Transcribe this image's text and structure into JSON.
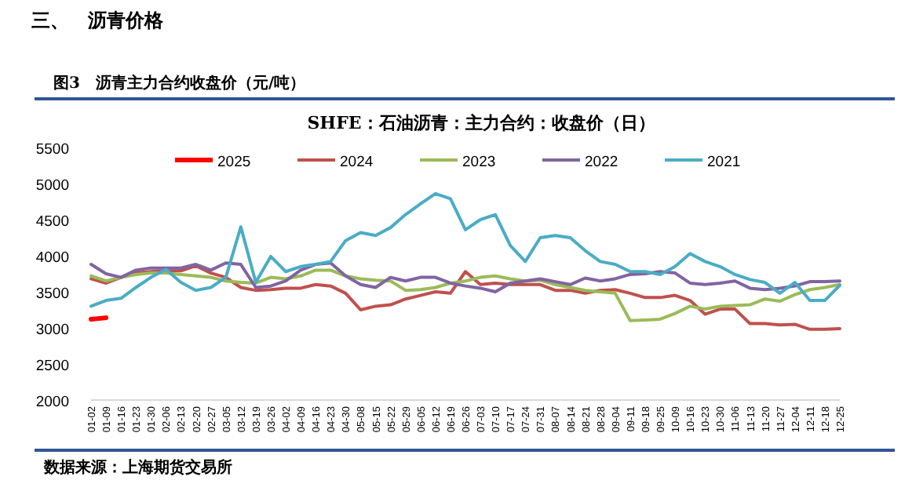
{
  "chart_data": {
    "type": "line",
    "title": "SHFE：石油沥青：主力合约：收盘价（日）",
    "annotations": [
      "三、　沥青价格",
      "图3　沥青主力合约收盘价（元/吨）",
      "数据来源：上海期货交易所"
    ],
    "categories": [
      "01-02",
      "01-09",
      "01-16",
      "01-23",
      "01-30",
      "02-06",
      "02-13",
      "02-20",
      "02-27",
      "03-05",
      "03-12",
      "03-19",
      "03-26",
      "04-02",
      "04-09",
      "04-16",
      "04-23",
      "04-30",
      "05-08",
      "05-15",
      "05-22",
      "05-29",
      "06-05",
      "06-12",
      "06-19",
      "06-26",
      "07-03",
      "07-10",
      "07-17",
      "07-24",
      "07-31",
      "08-07",
      "08-14",
      "08-21",
      "08-28",
      "09-04",
      "09-11",
      "09-18",
      "09-25",
      "10-09",
      "10-16",
      "10-23",
      "10-30",
      "11-06",
      "11-13",
      "11-20",
      "11-27",
      "12-04",
      "12-11",
      "12-18",
      "12-25"
    ],
    "series": [
      {
        "name": "2025",
        "color": "#ff0000",
        "values": [
          3120,
          3140,
          null,
          null,
          null,
          null,
          null,
          null,
          null,
          null,
          null,
          null,
          null,
          null,
          null,
          null,
          null,
          null,
          null,
          null,
          null,
          null,
          null,
          null,
          null,
          null,
          null,
          null,
          null,
          null,
          null,
          null,
          null,
          null,
          null,
          null,
          null,
          null,
          null,
          null,
          null,
          null,
          null,
          null,
          null,
          null,
          null,
          null,
          null,
          null,
          null
        ]
      },
      {
        "name": "2024",
        "color": "#c0504d",
        "values": [
          3680,
          3620,
          3700,
          3760,
          3780,
          3790,
          3790,
          3860,
          3760,
          3700,
          3560,
          3520,
          3530,
          3550,
          3550,
          3600,
          3580,
          3480,
          3250,
          3300,
          3320,
          3400,
          3450,
          3500,
          3480,
          3780,
          3600,
          3620,
          3600,
          3600,
          3600,
          3520,
          3520,
          3480,
          3520,
          3530,
          3480,
          3420,
          3420,
          3450,
          3380,
          3190,
          3260,
          3260,
          3060,
          3060,
          3040,
          3050,
          2980,
          2980,
          2990
        ]
      },
      {
        "name": "2023",
        "color": "#9bbb59",
        "values": [
          3720,
          3650,
          3700,
          3740,
          3760,
          3760,
          3740,
          3720,
          3700,
          3650,
          3630,
          3620,
          3700,
          3680,
          3720,
          3800,
          3800,
          3720,
          3680,
          3660,
          3650,
          3520,
          3530,
          3560,
          3620,
          3650,
          3700,
          3720,
          3680,
          3650,
          3660,
          3600,
          3560,
          3520,
          3500,
          3480,
          3100,
          3110,
          3120,
          3200,
          3300,
          3260,
          3300,
          3310,
          3320,
          3400,
          3370,
          3460,
          3530,
          3560,
          3600
        ]
      },
      {
        "name": "2022",
        "color": "#8064a2",
        "values": [
          3880,
          3750,
          3700,
          3800,
          3830,
          3830,
          3830,
          3880,
          3800,
          3900,
          3880,
          3560,
          3580,
          3650,
          3800,
          3880,
          3900,
          3720,
          3600,
          3560,
          3700,
          3650,
          3700,
          3700,
          3620,
          3580,
          3550,
          3500,
          3620,
          3650,
          3680,
          3640,
          3600,
          3690,
          3650,
          3680,
          3740,
          3750,
          3780,
          3760,
          3620,
          3600,
          3620,
          3650,
          3550,
          3530,
          3550,
          3580,
          3640,
          3640,
          3650
        ]
      },
      {
        "name": "2021",
        "color": "#4bacc6",
        "values": [
          3300,
          3380,
          3410,
          3560,
          3700,
          3810,
          3630,
          3520,
          3560,
          3700,
          4400,
          3630,
          3990,
          3780,
          3850,
          3880,
          3920,
          4210,
          4320,
          4280,
          4390,
          4570,
          4720,
          4860,
          4790,
          4360,
          4500,
          4570,
          4140,
          3920,
          4250,
          4280,
          4250,
          4070,
          3920,
          3880,
          3780,
          3780,
          3740,
          3850,
          4030,
          3920,
          3850,
          3740,
          3670,
          3630,
          3480,
          3630,
          3380,
          3380,
          3590
        ]
      }
    ],
    "ylim": [
      2000,
      5500
    ],
    "yticks": [
      2000,
      2500,
      3000,
      3500,
      4000,
      4500,
      5000,
      5500
    ],
    "grid": false,
    "legend": "top",
    "marker": "none",
    "line_style": "solid"
  }
}
